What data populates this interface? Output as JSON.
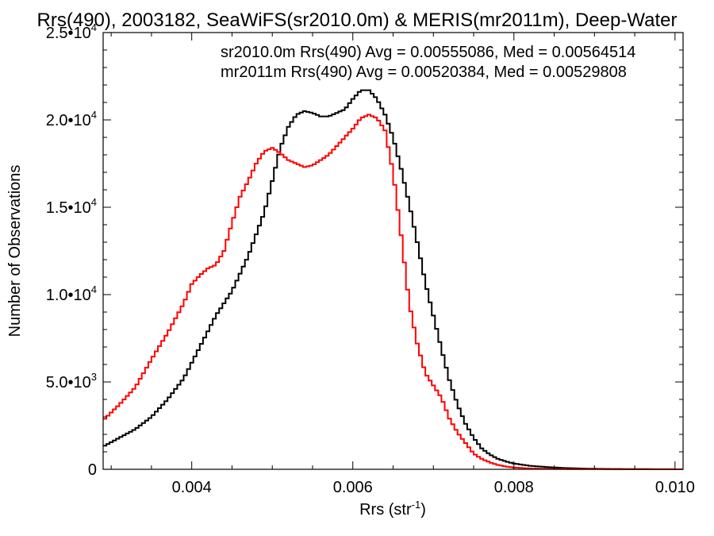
{
  "chart_data": {
    "type": "line",
    "title": "Rrs(490), 2003182, SeaWiFS(sr2010.0m) & MERIS(mr2011m), Deep-Water",
    "xlabel": "Rrs (str",
    "xlabel_exponent": "-1",
    "xlabel_close": ")",
    "ylabel": "Number of Observations",
    "xlim": [
      0.0029,
      0.0101
    ],
    "ylim": [
      0,
      25000
    ],
    "x_ticks": [
      0.004,
      0.006,
      0.008,
      0.01
    ],
    "x_tick_labels": [
      "0.004",
      "0.006",
      "0.008",
      "0.010"
    ],
    "y_ticks": [
      0,
      5000,
      10000,
      15000,
      20000,
      25000
    ],
    "y_tick_labels": [
      {
        "mantissa": "0",
        "exponent": ""
      },
      {
        "mantissa": "5.0•10",
        "exponent": "3"
      },
      {
        "mantissa": "1.0•10",
        "exponent": "4"
      },
      {
        "mantissa": "1.5•10",
        "exponent": "4"
      },
      {
        "mantissa": "2.0•10",
        "exponent": "4"
      },
      {
        "mantissa": "2.5•10",
        "exponent": "4"
      }
    ],
    "grid": false,
    "legend_position": "top-right",
    "series": [
      {
        "name": "sr2010.0m Rrs(490)",
        "legend_text": "sr2010.0m Rrs(490) Avg = 0.00555086, Med = 0.00564514",
        "color": "#000000",
        "x": [
          0.0029,
          0.0031,
          0.0033,
          0.0035,
          0.0037,
          0.0039,
          0.0041,
          0.0043,
          0.0045,
          0.0047,
          0.0049,
          0.005,
          0.0051,
          0.0052,
          0.0053,
          0.0054,
          0.0055,
          0.0056,
          0.0057,
          0.0058,
          0.0059,
          0.006,
          0.0061,
          0.0062,
          0.0063,
          0.0064,
          0.0065,
          0.0066,
          0.0067,
          0.0068,
          0.0069,
          0.007,
          0.0071,
          0.0072,
          0.0073,
          0.0074,
          0.0075,
          0.0076,
          0.0077,
          0.0078,
          0.0079,
          0.008,
          0.0082,
          0.0084,
          0.0086,
          0.0088,
          0.009,
          0.0092,
          0.0095,
          0.0098,
          0.0101
        ],
        "values": [
          1300,
          1800,
          2300,
          3000,
          4000,
          5200,
          7000,
          8800,
          10200,
          12200,
          14700,
          16500,
          18400,
          19600,
          20300,
          20500,
          20400,
          20200,
          20200,
          20400,
          20600,
          21200,
          21700,
          21700,
          21200,
          20300,
          19000,
          17200,
          15200,
          13000,
          10700,
          8800,
          6900,
          5100,
          3700,
          2600,
          1800,
          1200,
          850,
          600,
          450,
          330,
          200,
          130,
          80,
          50,
          30,
          20,
          10,
          5,
          0
        ]
      },
      {
        "name": "mr2011m Rrs(490)",
        "legend_text": "mr2011m Rrs(490) Avg = 0.00520384, Med = 0.00529808",
        "color": "#ff0000",
        "x": [
          0.0029,
          0.0031,
          0.0033,
          0.0035,
          0.0037,
          0.0039,
          0.004,
          0.0041,
          0.0042,
          0.0043,
          0.0044,
          0.0045,
          0.0046,
          0.0047,
          0.0048,
          0.0049,
          0.005,
          0.0051,
          0.0052,
          0.0053,
          0.0054,
          0.0055,
          0.0056,
          0.0057,
          0.0058,
          0.0059,
          0.006,
          0.0061,
          0.0062,
          0.0063,
          0.0064,
          0.0065,
          0.0066,
          0.0067,
          0.0068,
          0.0069,
          0.007,
          0.0071,
          0.0072,
          0.0073,
          0.0074,
          0.0075,
          0.0076,
          0.0077,
          0.0078,
          0.0079,
          0.008,
          0.0082,
          0.0085,
          0.009,
          0.0095,
          0.0101
        ],
        "values": [
          2800,
          3700,
          4700,
          6300,
          7800,
          9500,
          10600,
          11100,
          11500,
          11700,
          12500,
          14100,
          15600,
          16500,
          17500,
          18200,
          18400,
          18100,
          17700,
          17500,
          17300,
          17400,
          17700,
          18000,
          18500,
          19000,
          19500,
          20100,
          20300,
          20100,
          19400,
          17000,
          13400,
          9500,
          7200,
          5500,
          4800,
          4100,
          2900,
          2100,
          1500,
          900,
          600,
          400,
          250,
          160,
          100,
          50,
          20,
          8,
          3,
          0
        ]
      }
    ]
  }
}
